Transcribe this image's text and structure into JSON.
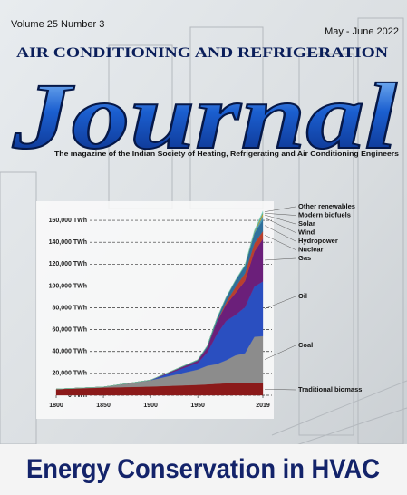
{
  "header": {
    "issue": "Volume 25 Number 3",
    "date": "May - June 2022",
    "masthead": "AIR CONDITIONING AND REFRIGERATION",
    "title": "Journal",
    "tagline": "The magazine of the Indian Society of Heating, Refrigerating and Air Conditioning Engineers"
  },
  "cover_line": "Energy Conservation in HVAC",
  "chart_data": {
    "type": "stacked-area",
    "x": [
      1800,
      1850,
      1900,
      1950,
      1960,
      1970,
      1980,
      1990,
      2000,
      2010,
      2019
    ],
    "xlim": [
      1800,
      2019
    ],
    "xticks": [
      1800,
      1850,
      1900,
      1950,
      2019
    ],
    "ylim": [
      0,
      170000
    ],
    "yticks": [
      {
        "value": 0,
        "label": "0 TWh"
      },
      {
        "value": 20000,
        "label": "20,000 TWh"
      },
      {
        "value": 40000,
        "label": "40,000 TWh"
      },
      {
        "value": 60000,
        "label": "60,000 TWh"
      },
      {
        "value": 80000,
        "label": "80,000 TWh"
      },
      {
        "value": 100000,
        "label": "100,000 TWh"
      },
      {
        "value": 120000,
        "label": "120,000 TWh"
      },
      {
        "value": 140000,
        "label": "140,000 TWh"
      },
      {
        "value": 160000,
        "label": "160,000 TWh"
      }
    ],
    "grid": true,
    "series": [
      {
        "name": "Traditional biomass",
        "color": "#8b1a1a",
        "values": [
          5600,
          7000,
          8000,
          9500,
          10000,
          10500,
          11000,
          11500,
          11500,
          11500,
          11100
        ]
      },
      {
        "name": "Coal",
        "color": "#8c8c8c",
        "values": [
          100,
          600,
          5700,
          14000,
          17000,
          18000,
          21000,
          25000,
          27000,
          42000,
          43000
        ]
      },
      {
        "name": "Oil",
        "color": "#2a4fc0",
        "values": [
          0,
          0,
          200,
          6000,
          12000,
          27000,
          36000,
          37000,
          42000,
          46000,
          50000
        ]
      },
      {
        "name": "Gas",
        "color": "#6b1f7a",
        "values": [
          0,
          0,
          60,
          2000,
          4500,
          11000,
          15000,
          20000,
          24000,
          32000,
          39000
        ]
      },
      {
        "name": "Nuclear",
        "color": "#b8402e",
        "values": [
          0,
          0,
          0,
          0,
          0,
          200,
          2000,
          5500,
          7000,
          7500,
          7000
        ]
      },
      {
        "name": "Hydropower",
        "color": "#2f6f9c",
        "values": [
          0,
          0,
          0,
          900,
          1600,
          3000,
          4500,
          6000,
          7000,
          9000,
          10500
        ]
      },
      {
        "name": "Wind",
        "color": "#4a9ab0",
        "values": [
          0,
          0,
          0,
          0,
          0,
          0,
          0,
          100,
          300,
          900,
          3500
        ]
      },
      {
        "name": "Solar",
        "color": "#f0a020",
        "values": [
          0,
          0,
          0,
          0,
          0,
          0,
          0,
          0,
          30,
          300,
          1800
        ]
      },
      {
        "name": "Modern biofuels",
        "color": "#3aa070",
        "values": [
          0,
          0,
          0,
          0,
          0,
          0,
          0,
          100,
          200,
          600,
          1100
        ]
      },
      {
        "name": "Other renewables",
        "color": "#7fd0c0",
        "values": [
          0,
          0,
          0,
          0,
          100,
          200,
          300,
          500,
          600,
          1200,
          1600
        ]
      }
    ]
  }
}
